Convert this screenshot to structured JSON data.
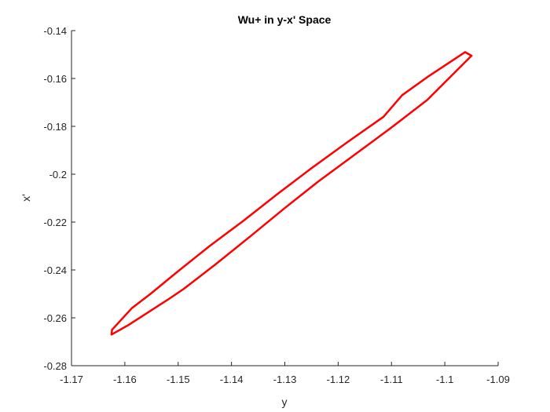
{
  "chart_data": {
    "type": "line",
    "title": "Wu+ in y-x' Space",
    "xlabel": "y",
    "ylabel": "x'",
    "xlim": [
      -1.17,
      -1.09
    ],
    "ylim": [
      -0.28,
      -0.14
    ],
    "xticks": [
      -1.17,
      -1.16,
      -1.15,
      -1.14,
      -1.13,
      -1.12,
      -1.11,
      -1.1,
      -1.09
    ],
    "xtick_labels": [
      "-1.17",
      "-1.16",
      "-1.15",
      "-1.14",
      "-1.13",
      "-1.12",
      "-1.11",
      "-1.1",
      "-1.09"
    ],
    "yticks": [
      -0.28,
      -0.26,
      -0.24,
      -0.22,
      -0.2,
      -0.18,
      -0.16,
      -0.14
    ],
    "ytick_labels": [
      "-0.28",
      "-0.26",
      "-0.24",
      "-0.22",
      "-0.2",
      "-0.18",
      "-0.16",
      "-0.14"
    ],
    "grid": false,
    "series": [
      {
        "color": "#ff0000",
        "closed": true,
        "x": [
          -1.0962,
          -1.095,
          -1.1033,
          -1.1103,
          -1.117,
          -1.1237,
          -1.1302,
          -1.1365,
          -1.1429,
          -1.149,
          -1.152,
          -1.1555,
          -1.1593,
          -1.1625,
          -1.1624,
          -1.1587,
          -1.1552,
          -1.15,
          -1.1441,
          -1.1378,
          -1.1315,
          -1.125,
          -1.1185,
          -1.1115,
          -1.108,
          -1.103,
          -1.0962
        ],
        "y": [
          -0.149,
          -0.1505,
          -0.169,
          -0.181,
          -0.192,
          -0.203,
          -0.2145,
          -0.226,
          -0.2375,
          -0.248,
          -0.2525,
          -0.2575,
          -0.263,
          -0.267,
          -0.265,
          -0.256,
          -0.25,
          -0.2405,
          -0.23,
          -0.2195,
          -0.2085,
          -0.1975,
          -0.187,
          -0.176,
          -0.167,
          -0.159,
          -0.149
        ]
      }
    ]
  }
}
